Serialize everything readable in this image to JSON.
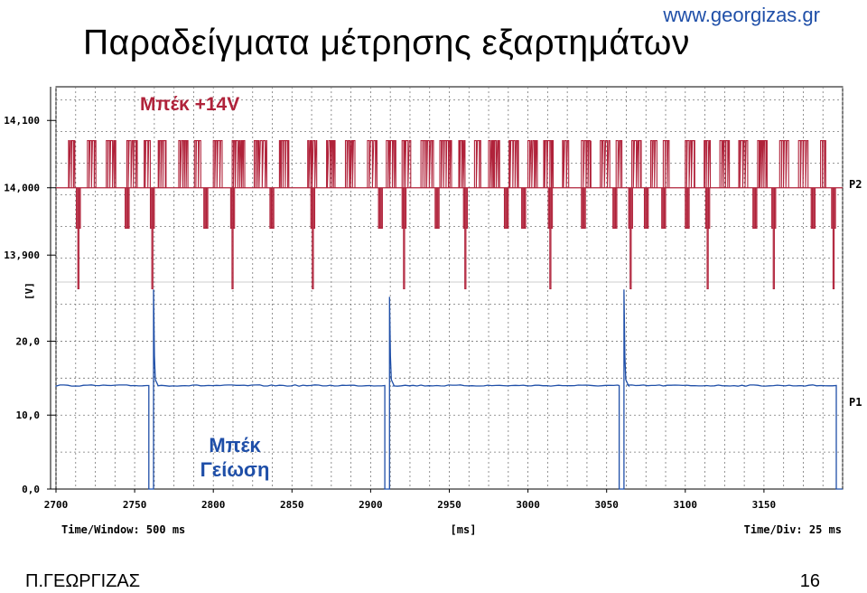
{
  "header": {
    "website": "www.georgizas.gr",
    "title": "Παραδείγματα μέτρησης εξαρτημάτων"
  },
  "footer": {
    "author": "Π.ΓΕΩΡΓΙΖΑΣ",
    "page_number": "16"
  },
  "chart_data": {
    "type": "line",
    "xlim": [
      2700,
      3200
    ],
    "x_ticks": [
      "2700",
      "2750",
      "2800",
      "2850",
      "2900",
      "2950",
      "3000",
      "3050",
      "3100",
      "3150"
    ],
    "x_tick_values": [
      2700,
      2750,
      2800,
      2850,
      2900,
      2950,
      3000,
      3050,
      3100,
      3150
    ],
    "xlabel": "[ms]",
    "ylabel": "[V]",
    "time_window": "Time/Window: 500 ms",
    "time_div": "Time/Div: 25 ms",
    "grid": true,
    "panels": [
      {
        "name": "P2",
        "annotation": "Μπέκ +14V",
        "color": "#b0223a",
        "ylim": [
          13.86,
          14.15
        ],
        "y_ticks": [
          "14,100",
          "14,000",
          "13,900"
        ],
        "y_tick_values": [
          14.1,
          14.0,
          13.9
        ],
        "baseline": 14.0,
        "high": 14.07,
        "low": 13.94,
        "deep": 13.85,
        "bursts": [
          [
            2708,
            2712
          ],
          [
            2720,
            2726
          ],
          [
            2732,
            2738
          ],
          [
            2745,
            2752
          ],
          [
            2756,
            2760
          ],
          [
            2765,
            2770
          ],
          [
            2778,
            2784
          ],
          [
            2788,
            2792
          ],
          [
            2800,
            2806
          ],
          [
            2812,
            2820
          ],
          [
            2826,
            2834
          ],
          [
            2842,
            2848
          ],
          [
            2860,
            2866
          ],
          [
            2872,
            2878
          ],
          [
            2884,
            2890
          ],
          [
            2898,
            2904
          ],
          [
            2910,
            2916
          ],
          [
            2920,
            2926
          ],
          [
            2932,
            2940
          ],
          [
            2944,
            2952
          ],
          [
            2956,
            2960
          ],
          [
            2966,
            2970
          ],
          [
            2975,
            2982
          ],
          [
            2988,
            2994
          ],
          [
            3000,
            3006
          ],
          [
            3010,
            3016
          ],
          [
            3022,
            3026
          ],
          [
            3034,
            3040
          ],
          [
            3046,
            3052
          ],
          [
            3056,
            3060
          ],
          [
            3066,
            3072
          ],
          [
            3078,
            3082
          ],
          [
            3086,
            3090
          ],
          [
            3100,
            3106
          ],
          [
            3112,
            3116
          ],
          [
            3122,
            3128
          ],
          [
            3134,
            3140
          ],
          [
            3146,
            3152
          ],
          [
            3160,
            3166
          ],
          [
            3172,
            3178
          ],
          [
            3186,
            3190
          ]
        ],
        "dips": [
          2713,
          2744,
          2760,
          2794,
          2811,
          2836,
          2862,
          2905,
          2920,
          2941,
          2959,
          2985,
          2996,
          3013,
          3034,
          3054,
          3064,
          3074,
          3085,
          3100,
          3113,
          3143,
          3155,
          3180,
          3193
        ],
        "deep_dips": [
          2713,
          2760,
          2811,
          2862,
          2920,
          2959,
          3013,
          3064,
          3113,
          3155,
          3193
        ]
      },
      {
        "name": "P1",
        "annotation": [
          "Μπέκ",
          "Γείωση"
        ],
        "color": "#1f4fa8",
        "ylim": [
          0,
          28
        ],
        "y_ticks": [
          "20,0",
          "10,0",
          "0,0"
        ],
        "y_tick_values": [
          20,
          10,
          0
        ],
        "baseline": 14.0,
        "pulses": [
          {
            "start": 2759,
            "end": 2762,
            "spike": 27.0
          },
          {
            "start": 2909,
            "end": 2912,
            "spike": 26.0
          },
          {
            "start": 3058,
            "end": 3061,
            "spike": 27.0
          }
        ],
        "end_drop": 3196
      }
    ]
  }
}
